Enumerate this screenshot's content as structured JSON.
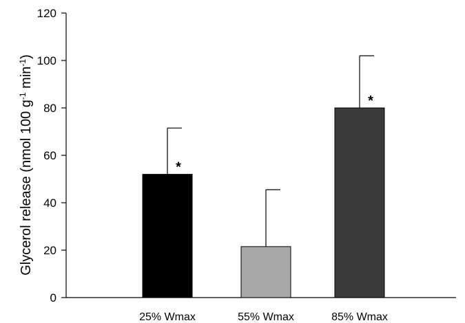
{
  "chart_data": {
    "type": "bar",
    "title": "",
    "xlabel": "",
    "ylabel_parts": [
      "Glycerol release (nmol 100 g",
      "-1",
      " min",
      "-1",
      ")"
    ],
    "ylim": [
      0,
      120
    ],
    "yticks": [
      0,
      20,
      40,
      60,
      80,
      100,
      120
    ],
    "categories": [
      "25% Wmax",
      "55% Wmax",
      "85% Wmax"
    ],
    "values": [
      52,
      21.5,
      80
    ],
    "errors_upper": [
      71.5,
      45.5,
      102
    ],
    "significance": [
      "*",
      "",
      "*"
    ],
    "bar_colors": [
      "#000000",
      "#a8a8a8",
      "#3a3a3a"
    ],
    "grid": false,
    "legend": "none"
  }
}
